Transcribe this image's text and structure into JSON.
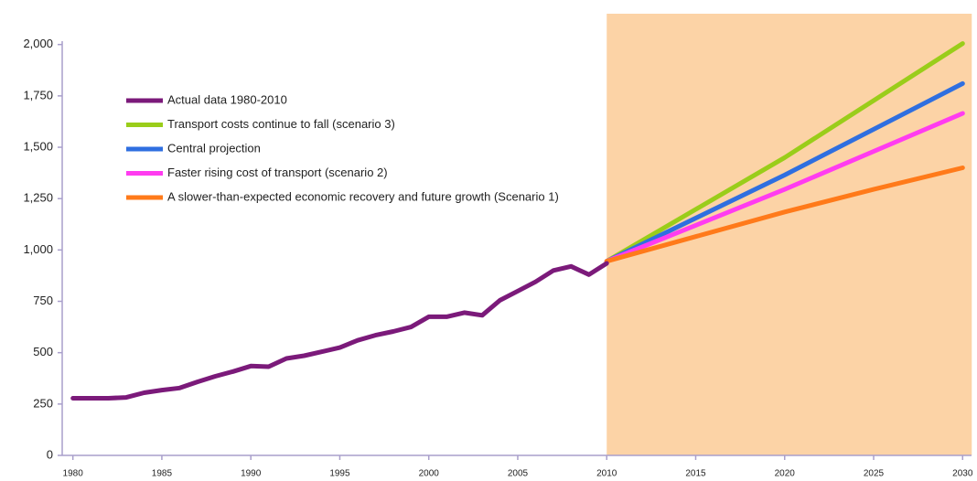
{
  "chart_data": {
    "type": "line",
    "xlim": [
      1979.4,
      2030.5
    ],
    "xticks": [
      1980,
      1985,
      1990,
      1995,
      2000,
      2005,
      2010,
      2015,
      2020,
      2025,
      2030
    ],
    "ylim": [
      0,
      2150
    ],
    "yticks": [
      0,
      250,
      500,
      750,
      {
        "value": 1000,
        "label": "1,000"
      },
      {
        "value": 1250,
        "label": "1,250"
      },
      {
        "value": 1500,
        "label": "1,500"
      },
      {
        "value": 1750,
        "label": "1,750"
      },
      {
        "value": 2000,
        "label": "2,000"
      }
    ],
    "shaded_range": [
      2010,
      2030
    ],
    "shade_color": "#fcd3a6",
    "series": [
      {
        "name": "Actual data 1980-2010",
        "color": "#7b1a7a",
        "x": [
          1980,
          1981,
          1982,
          1983,
          1984,
          1985,
          1986,
          1987,
          1988,
          1989,
          1990,
          1991,
          1992,
          1993,
          1994,
          1995,
          1996,
          1997,
          1998,
          1999,
          2000,
          2001,
          2002,
          2003,
          2004,
          2005,
          2006,
          2007,
          2008,
          2009,
          2010
        ],
        "values": [
          278,
          278,
          278,
          282,
          305,
          318,
          328,
          358,
          385,
          408,
          435,
          432,
          472,
          485,
          505,
          525,
          560,
          585,
          603,
          625,
          675,
          675,
          695,
          682,
          755,
          800,
          845,
          900,
          920,
          880,
          935
        ]
      },
      {
        "name": "Transport costs continue to fall (scenario 3)",
        "color": "#9acd1a",
        "x": [
          2010,
          2020,
          2030
        ],
        "values": [
          945,
          1450,
          2005
        ]
      },
      {
        "name": "Central projection",
        "color": "#2f6fe0",
        "x": [
          2010,
          2020,
          2030
        ],
        "values": [
          945,
          1365,
          1810
        ]
      },
      {
        "name": "Faster rising cost of transport (scenario 2)",
        "color": "#ff3cf0",
        "x": [
          2010,
          2020,
          2030
        ],
        "values": [
          945,
          1295,
          1665
        ]
      },
      {
        "name": "A slower-than-expected economic recovery and future growth (Scenario 1)",
        "color": "#ff7a1a",
        "x": [
          2010,
          2015,
          2020,
          2025,
          2030
        ],
        "values": [
          945,
          1065,
          1185,
          1295,
          1400
        ]
      }
    ]
  }
}
